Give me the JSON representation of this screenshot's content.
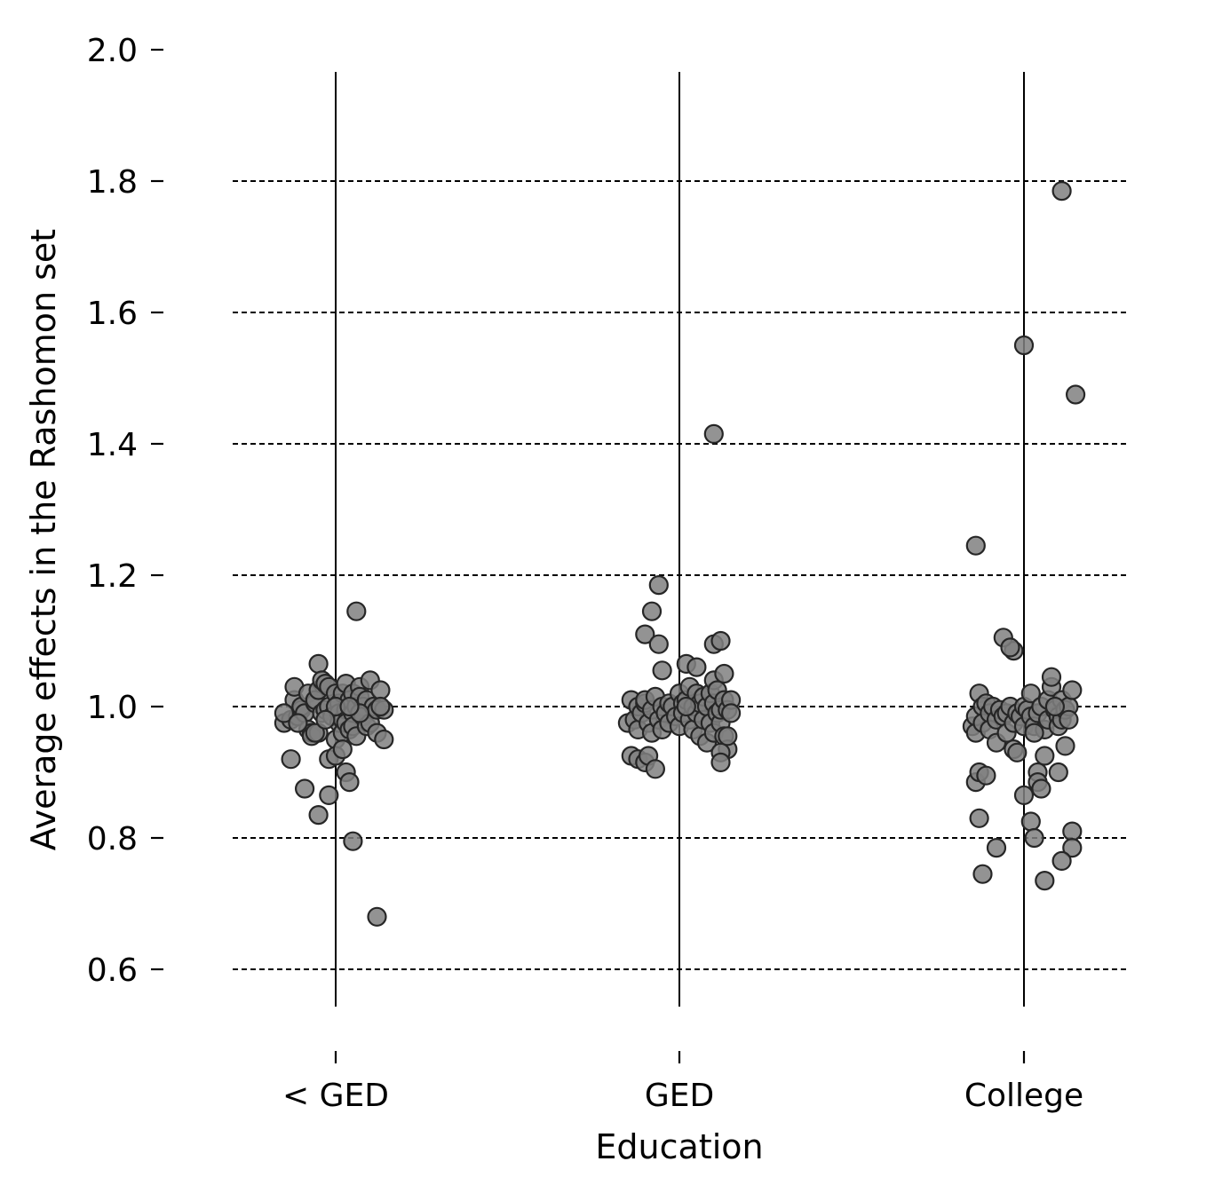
{
  "chart_data": {
    "type": "scatter",
    "title": "",
    "xlabel": "Education",
    "ylabel": "Average effects in the Rashomon set",
    "categories": [
      "< GED",
      "GED",
      "College"
    ],
    "ylim": [
      0.55,
      2.0
    ],
    "yticks": [
      "0.6",
      "0.8",
      "1.0",
      "1.2",
      "1.4",
      "1.6",
      "1.8",
      "2.0"
    ],
    "grid": "horizontal dashed at 0.6–1.8",
    "point_color": "#808080",
    "point_edge_color": "#262626",
    "series": [
      {
        "category": "< GED",
        "points": [
          [
            -0.15,
            0.975
          ],
          [
            -0.13,
            0.98
          ],
          [
            -0.12,
            1.01
          ],
          [
            -0.12,
            1.03
          ],
          [
            -0.11,
            0.985
          ],
          [
            -0.1,
            0.995
          ],
          [
            -0.1,
            1.0
          ],
          [
            -0.09,
            0.99
          ],
          [
            -0.08,
            1.02
          ],
          [
            -0.08,
            0.965
          ],
          [
            -0.07,
            0.96
          ],
          [
            -0.07,
            0.955
          ],
          [
            -0.06,
            1.005
          ],
          [
            -0.06,
            1.01
          ],
          [
            -0.05,
            1.025
          ],
          [
            -0.05,
            1.065
          ],
          [
            -0.05,
            0.96
          ],
          [
            -0.04,
            0.99
          ],
          [
            -0.04,
            1.04
          ],
          [
            -0.03,
            0.995
          ],
          [
            -0.03,
            1.035
          ],
          [
            -0.02,
            1.0
          ],
          [
            -0.02,
            1.03
          ],
          [
            -0.02,
            0.92
          ],
          [
            -0.01,
            0.985
          ],
          [
            0.0,
            1.02
          ],
          [
            0.0,
            0.95
          ],
          [
            0.0,
            0.925
          ],
          [
            0.01,
            1.005
          ],
          [
            0.01,
            0.99
          ],
          [
            0.01,
            0.975
          ],
          [
            0.02,
            1.02
          ],
          [
            0.02,
            0.98
          ],
          [
            0.02,
            0.96
          ],
          [
            0.03,
            1.035
          ],
          [
            0.03,
            0.995
          ],
          [
            0.03,
            0.975
          ],
          [
            0.04,
            1.01
          ],
          [
            0.04,
            0.965
          ],
          [
            0.05,
            1.02
          ],
          [
            0.05,
            0.99
          ],
          [
            0.05,
            0.97
          ],
          [
            0.06,
            1.0
          ],
          [
            0.06,
            0.955
          ],
          [
            0.07,
            1.03
          ],
          [
            0.07,
            1.015
          ],
          [
            0.08,
            1.0
          ],
          [
            0.08,
            0.985
          ],
          [
            0.09,
            1.01
          ],
          [
            0.09,
            0.97
          ],
          [
            0.1,
            1.04
          ],
          [
            0.1,
            0.975
          ],
          [
            0.11,
            1.0
          ],
          [
            0.12,
            0.995
          ],
          [
            0.12,
            0.96
          ],
          [
            0.13,
            1.025
          ],
          [
            0.14,
            0.995
          ],
          [
            0.14,
            0.95
          ],
          [
            -0.13,
            0.92
          ],
          [
            -0.09,
            0.875
          ],
          [
            -0.05,
            0.835
          ],
          [
            -0.02,
            0.865
          ],
          [
            0.02,
            0.935
          ],
          [
            0.03,
            0.9
          ],
          [
            0.04,
            0.885
          ],
          [
            0.05,
            0.795
          ],
          [
            0.06,
            1.145
          ],
          [
            0.12,
            0.68
          ],
          [
            -0.15,
            0.99
          ],
          [
            -0.11,
            0.975
          ],
          [
            -0.06,
            0.96
          ],
          [
            0.0,
            1.0
          ],
          [
            0.07,
            0.99
          ],
          [
            0.13,
            1.0
          ],
          [
            -0.03,
            0.98
          ],
          [
            0.04,
            1.0
          ]
        ]
      },
      {
        "category": "GED",
        "points": [
          [
            -0.15,
            0.975
          ],
          [
            -0.14,
            1.01
          ],
          [
            -0.13,
            0.98
          ],
          [
            -0.12,
            1.0
          ],
          [
            -0.12,
            0.965
          ],
          [
            -0.11,
            0.99
          ],
          [
            -0.1,
            1.005
          ],
          [
            -0.1,
            1.01
          ],
          [
            -0.09,
            0.975
          ],
          [
            -0.08,
            0.995
          ],
          [
            -0.08,
            0.96
          ],
          [
            -0.07,
            1.015
          ],
          [
            -0.06,
            0.98
          ],
          [
            -0.05,
            1.0
          ],
          [
            -0.05,
            0.965
          ],
          [
            -0.04,
            0.99
          ],
          [
            -0.03,
            1.005
          ],
          [
            -0.03,
            0.975
          ],
          [
            -0.02,
            1.0
          ],
          [
            -0.01,
            0.985
          ],
          [
            0.0,
            1.02
          ],
          [
            0.0,
            0.97
          ],
          [
            0.01,
            1.005
          ],
          [
            0.01,
            0.99
          ],
          [
            0.02,
            1.01
          ],
          [
            0.03,
            1.03
          ],
          [
            0.03,
            0.98
          ],
          [
            0.04,
            1.0
          ],
          [
            0.04,
            0.965
          ],
          [
            0.05,
            1.02
          ],
          [
            0.05,
            0.99
          ],
          [
            0.06,
            1.005
          ],
          [
            0.06,
            0.955
          ],
          [
            0.07,
            1.015
          ],
          [
            0.07,
            0.98
          ],
          [
            0.08,
            1.0
          ],
          [
            0.08,
            0.945
          ],
          [
            0.09,
            1.02
          ],
          [
            0.09,
            0.975
          ],
          [
            0.1,
            1.04
          ],
          [
            0.1,
            1.005
          ],
          [
            0.1,
            0.96
          ],
          [
            0.11,
            0.99
          ],
          [
            0.11,
            1.025
          ],
          [
            0.12,
            0.975
          ],
          [
            0.12,
            0.995
          ],
          [
            0.13,
            1.01
          ],
          [
            0.13,
            0.955
          ],
          [
            0.14,
            0.995
          ],
          [
            0.14,
            0.935
          ],
          [
            0.15,
            1.01
          ],
          [
            0.15,
            0.99
          ],
          [
            -0.14,
            0.925
          ],
          [
            -0.12,
            0.92
          ],
          [
            -0.1,
            0.915
          ],
          [
            -0.09,
            0.925
          ],
          [
            -0.07,
            0.905
          ],
          [
            -0.1,
            1.11
          ],
          [
            -0.08,
            1.145
          ],
          [
            -0.06,
            1.185
          ],
          [
            -0.06,
            1.095
          ],
          [
            -0.05,
            1.055
          ],
          [
            0.02,
            1.065
          ],
          [
            0.05,
            1.06
          ],
          [
            0.1,
            1.095
          ],
          [
            0.12,
            1.1
          ],
          [
            0.13,
            1.05
          ],
          [
            0.12,
            0.93
          ],
          [
            0.12,
            0.915
          ],
          [
            0.14,
            0.955
          ],
          [
            0.1,
            1.415
          ],
          [
            0.02,
            1.0
          ]
        ]
      },
      {
        "category": "College",
        "points": [
          [
            -0.15,
            0.97
          ],
          [
            -0.14,
            0.96
          ],
          [
            -0.14,
            0.985
          ],
          [
            -0.13,
            1.02
          ],
          [
            -0.12,
            1.0
          ],
          [
            -0.12,
            0.975
          ],
          [
            -0.11,
            1.005
          ],
          [
            -0.1,
            0.99
          ],
          [
            -0.1,
            0.965
          ],
          [
            -0.09,
            1.0
          ],
          [
            -0.08,
            0.98
          ],
          [
            -0.08,
            0.945
          ],
          [
            -0.07,
            0.995
          ],
          [
            -0.06,
            0.985
          ],
          [
            -0.05,
            0.96
          ],
          [
            -0.05,
            0.99
          ],
          [
            -0.04,
            1.0
          ],
          [
            -0.03,
            0.935
          ],
          [
            -0.03,
            0.975
          ],
          [
            -0.02,
            0.99
          ],
          [
            -0.01,
            0.985
          ],
          [
            0.0,
            1.0
          ],
          [
            0.0,
            0.97
          ],
          [
            0.01,
            0.995
          ],
          [
            0.02,
            1.02
          ],
          [
            0.02,
            0.985
          ],
          [
            0.03,
            0.97
          ],
          [
            0.04,
            0.99
          ],
          [
            0.05,
            1.0
          ],
          [
            0.06,
            0.965
          ],
          [
            0.07,
            1.01
          ],
          [
            0.07,
            0.98
          ],
          [
            0.08,
            1.03
          ],
          [
            0.08,
            1.045
          ],
          [
            0.09,
            0.995
          ],
          [
            0.1,
            0.985
          ],
          [
            0.1,
            0.97
          ],
          [
            0.11,
            1.01
          ],
          [
            0.11,
            0.98
          ],
          [
            0.12,
            0.995
          ],
          [
            0.13,
            1.0
          ],
          [
            0.13,
            0.98
          ],
          [
            0.14,
            1.025
          ],
          [
            -0.14,
            1.245
          ],
          [
            -0.03,
            1.085
          ],
          [
            -0.06,
            1.105
          ],
          [
            -0.04,
            1.09
          ],
          [
            0.0,
            1.55
          ],
          [
            0.11,
            1.785
          ],
          [
            0.15,
            1.475
          ],
          [
            -0.14,
            0.885
          ],
          [
            -0.13,
            0.9
          ],
          [
            -0.11,
            0.895
          ],
          [
            -0.13,
            0.83
          ],
          [
            -0.12,
            0.745
          ],
          [
            -0.08,
            0.785
          ],
          [
            0.0,
            0.865
          ],
          [
            0.02,
            0.825
          ],
          [
            0.03,
            0.8
          ],
          [
            0.04,
            0.9
          ],
          [
            0.04,
            0.885
          ],
          [
            0.05,
            0.875
          ],
          [
            0.06,
            0.735
          ],
          [
            0.06,
            0.925
          ],
          [
            0.1,
            0.9
          ],
          [
            0.12,
            0.94
          ],
          [
            0.14,
            0.81
          ],
          [
            0.14,
            0.785
          ],
          [
            0.11,
            0.765
          ],
          [
            -0.02,
            0.93
          ],
          [
            0.03,
            0.96
          ],
          [
            0.09,
            1.0
          ]
        ]
      }
    ]
  }
}
